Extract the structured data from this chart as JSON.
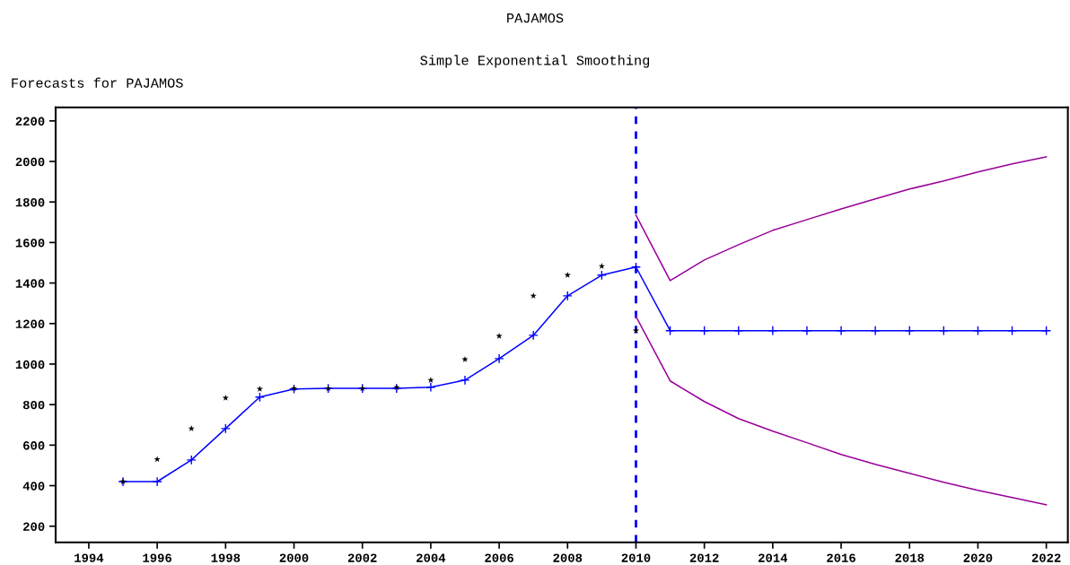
{
  "chart_data": {
    "type": "line",
    "title": "PAJAMOS",
    "subtitle": "Simple Exponential Smoothing",
    "ylabel": "Forecasts for PAJAMOS",
    "xlim": [
      1993.03,
      2022.63
    ],
    "xticks": [
      1994,
      1996,
      1998,
      2000,
      2002,
      2004,
      2006,
      2008,
      2010,
      2012,
      2014,
      2016,
      2018,
      2020,
      2022
    ],
    "ylim": [
      120,
      2267
    ],
    "yticks": [
      200,
      400,
      600,
      800,
      1000,
      1200,
      1400,
      1600,
      1800,
      2000,
      2200
    ],
    "grid": false,
    "legend": false,
    "ref_lines": [
      {
        "axis": "x",
        "value": 2010,
        "color": "#0000ff",
        "line_style": "dashed"
      }
    ],
    "series": [
      {
        "color": "#0000ff",
        "marker": "cross",
        "line_style": "solid",
        "x": [
          1995,
          1996,
          1997,
          1998,
          1999,
          2000,
          2001,
          2002,
          2003,
          2004,
          2005,
          2006,
          2007,
          2008,
          2009,
          2010,
          2011,
          2012,
          2013,
          2014,
          2015,
          2016,
          2017,
          2018,
          2019,
          2020,
          2021,
          2022
        ],
        "values": [
          420,
          420,
          527,
          682,
          837,
          877,
          880,
          880,
          880,
          886,
          921,
          1027,
          1142,
          1337,
          1439,
          1479,
          1165,
          1165,
          1165,
          1165,
          1165,
          1165,
          1165,
          1165,
          1165,
          1165,
          1165,
          1165
        ]
      },
      {
        "color": "#990099",
        "marker": "none",
        "line_style": "solid",
        "x": [
          2010,
          2011,
          2012,
          2013,
          2014,
          2015,
          2016,
          2017,
          2018,
          2019,
          2020,
          2021,
          2022
        ],
        "values": [
          1735,
          1412,
          1514,
          1589,
          1660,
          1713,
          1766,
          1815,
          1864,
          1904,
          1948,
          1988,
          2023
        ]
      },
      {
        "color": "#990099",
        "marker": "none",
        "line_style": "solid",
        "x": [
          2010,
          2011,
          2012,
          2013,
          2014,
          2015,
          2016,
          2017,
          2018,
          2019,
          2020,
          2021,
          2022
        ],
        "values": [
          1235,
          917,
          815,
          731,
          669,
          612,
          554,
          505,
          461,
          417,
          377,
          342,
          306
        ]
      },
      {
        "type": "scatter",
        "color": "#000000",
        "marker": "star",
        "x": [
          1995,
          1996,
          1997,
          1998,
          1999,
          2000,
          2001,
          2002,
          2003,
          2004,
          2005,
          2006,
          2007,
          2008,
          2009,
          2010
        ],
        "values": [
          420,
          530,
          682,
          833,
          877,
          880,
          880,
          880,
          885,
          921,
          1023,
          1138,
          1337,
          1439,
          1483,
          1165
        ]
      }
    ]
  }
}
